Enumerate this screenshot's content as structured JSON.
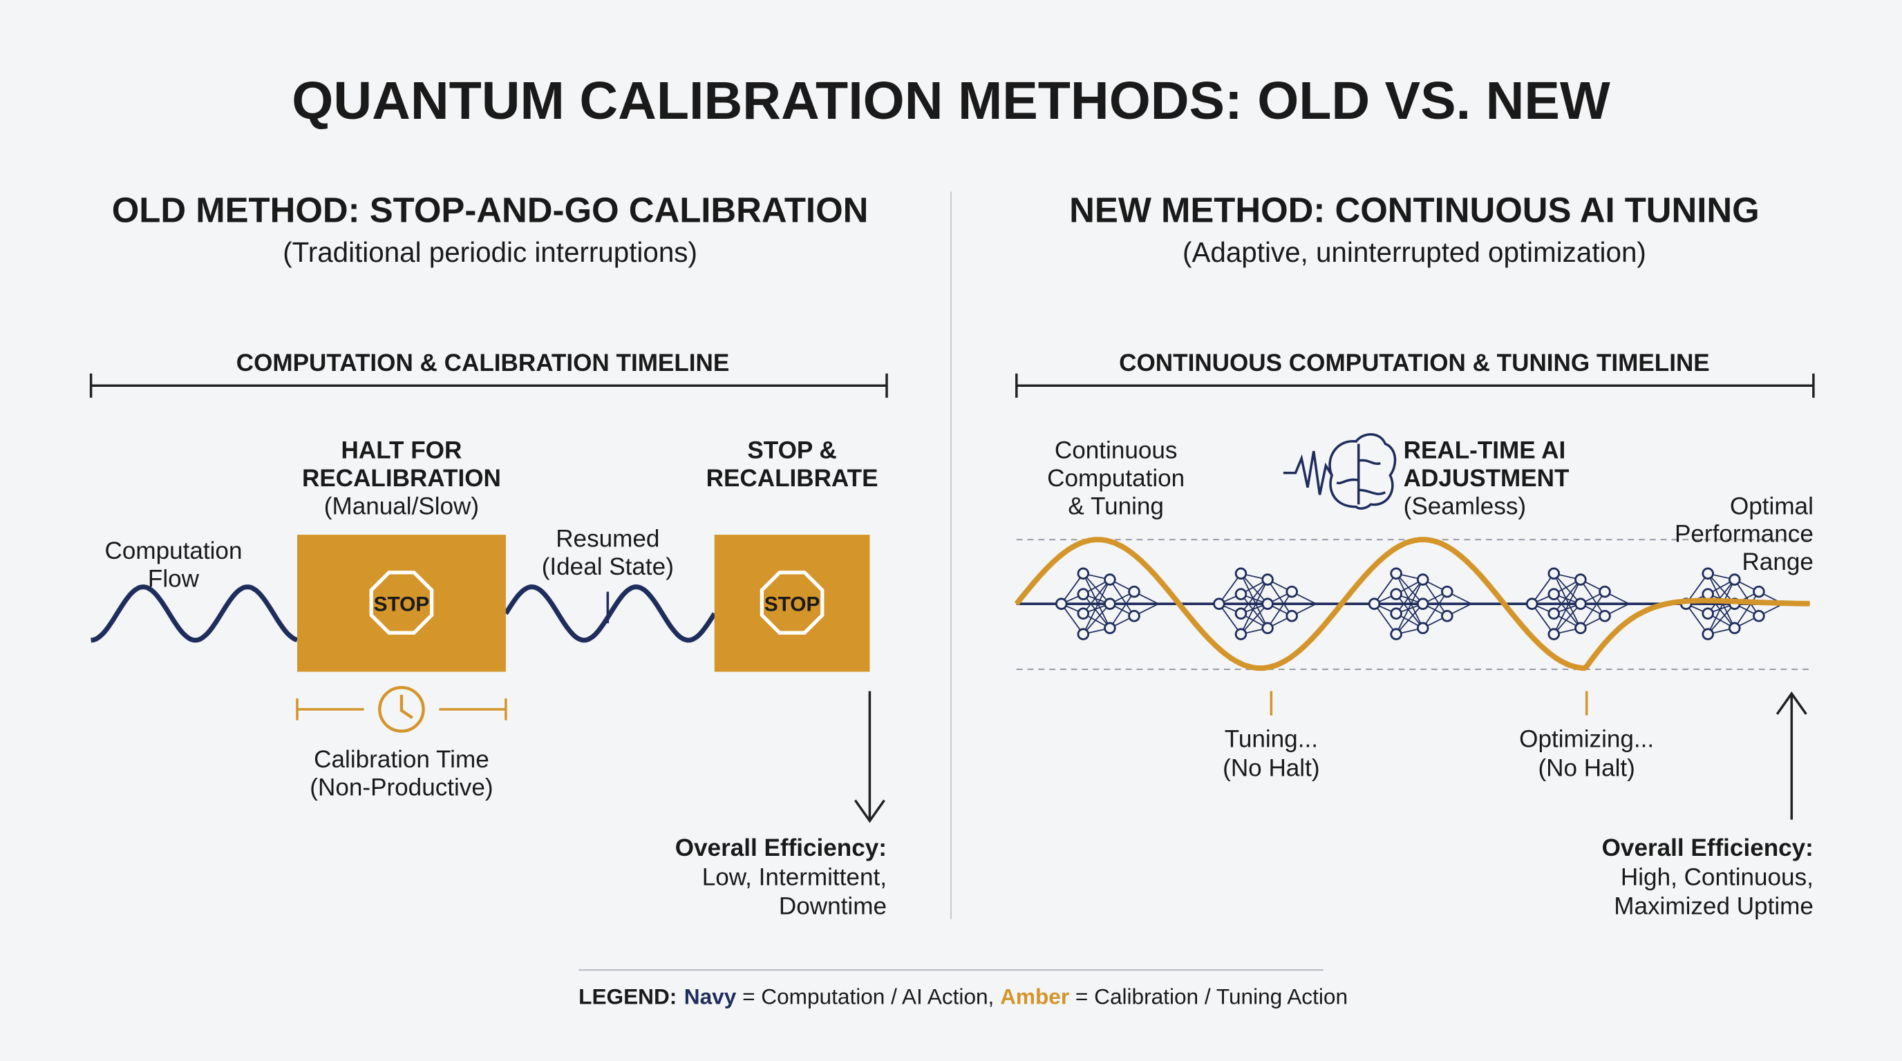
{
  "title": "QUANTUM CALIBRATION METHODS: OLD VS. NEW",
  "old": {
    "heading": "OLD METHOD: STOP-AND-GO CALIBRATION",
    "subheading": "(Traditional periodic interruptions)",
    "timeline": "COMPUTATION & CALIBRATION TIMELINE",
    "flow_label": [
      "Computation",
      "Flow"
    ],
    "halt_label": [
      "HALT FOR",
      "RECALIBRATION"
    ],
    "halt_note": "(Manual/Slow)",
    "stop_sign_1": "STOP",
    "resumed": [
      "Resumed",
      "(Ideal State)"
    ],
    "stop_label": [
      "STOP &",
      "RECALIBRATE"
    ],
    "stop_sign_2": "STOP",
    "calibration_time": [
      "Calibration Time",
      "(Non-Productive)"
    ],
    "efficiency_title": "Overall Efficiency:",
    "efficiency": [
      "Low, Intermittent,",
      "Downtime"
    ]
  },
  "new": {
    "heading": "NEW METHOD: CONTINUOUS AI TUNING",
    "subheading": "(Adaptive, uninterrupted optimization)",
    "timeline": "CONTINUOUS COMPUTATION & TUNING TIMELINE",
    "continuous_label": [
      "Continuous",
      "Computation",
      "& Tuning"
    ],
    "ai_label": [
      "REAL-TIME AI",
      "ADJUSTMENT"
    ],
    "ai_note": "(Seamless)",
    "optimal_label": [
      "Optimal",
      "Performance",
      "Range"
    ],
    "tuning_label": [
      "Tuning...",
      "(No Halt)"
    ],
    "optimizing_label": [
      "Optimizing...",
      "(No Halt)"
    ],
    "efficiency_title": "Overall Efficiency:",
    "efficiency": [
      "High, Continuous,",
      "Maximized Uptime"
    ]
  },
  "legend": {
    "label": "LEGEND:",
    "navy": "Navy",
    "navy_text": "= Computation / AI Action,",
    "amber": "Amber",
    "amber_text": "= Calibration / Tuning Action"
  }
}
